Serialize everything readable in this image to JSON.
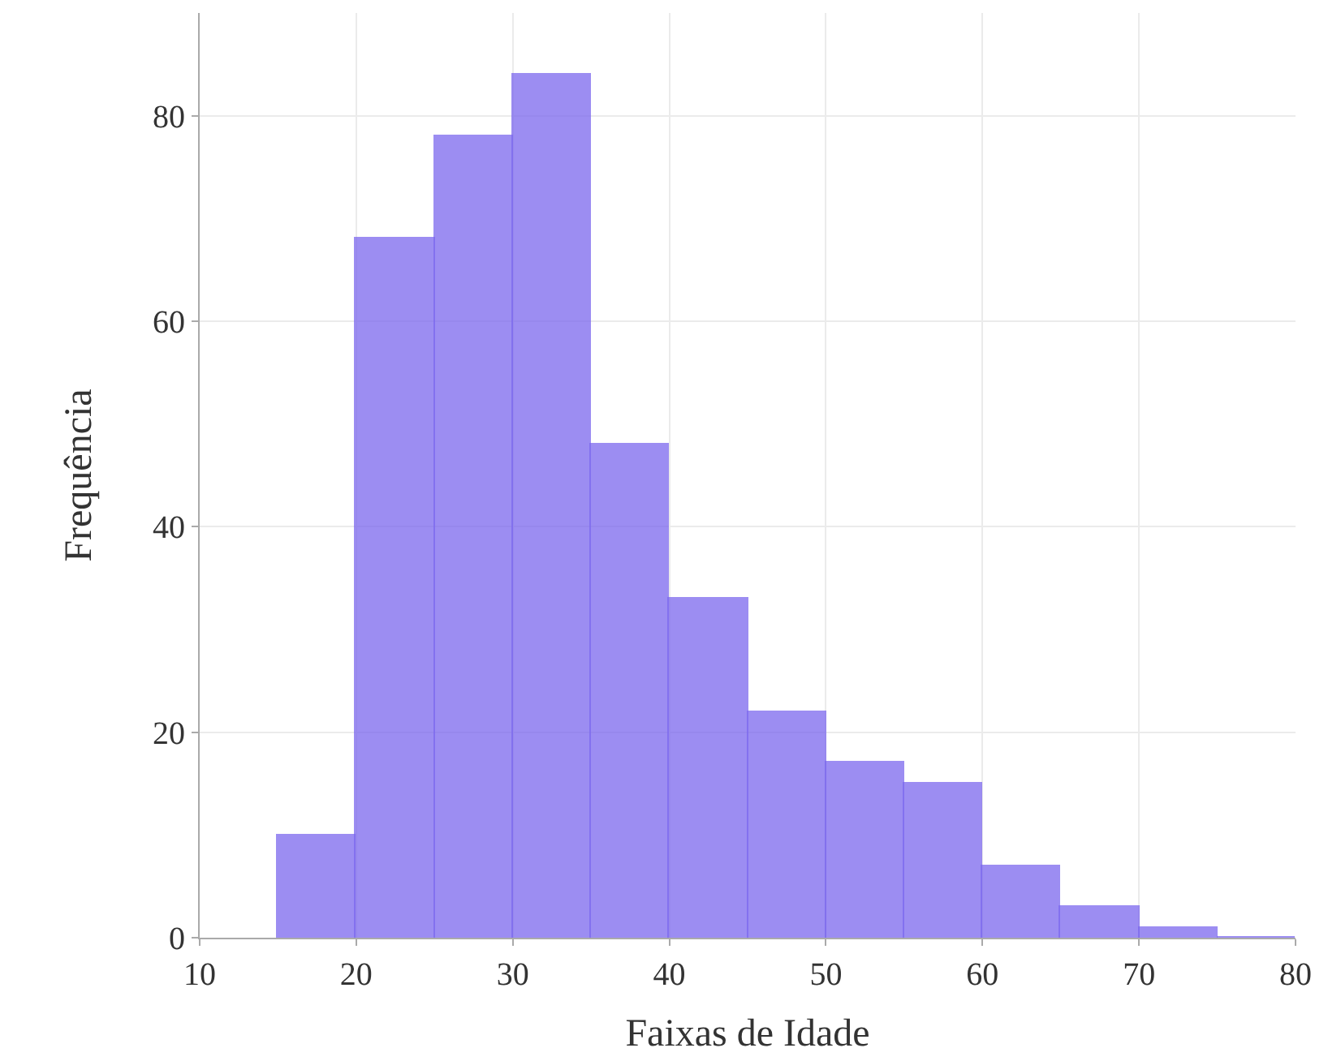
{
  "chart_data": {
    "type": "histogram",
    "xlabel": "Faixas de Idade",
    "ylabel": "Frequência",
    "bins": [
      15,
      20,
      25,
      30,
      35,
      40,
      45,
      50,
      55,
      60,
      65,
      70,
      75,
      80
    ],
    "values": [
      10,
      68,
      78,
      84,
      48,
      33,
      22,
      17,
      15,
      7,
      3,
      1,
      0
    ],
    "color": "#7b68ee",
    "xlim": [
      10,
      80
    ],
    "xticks": [
      10,
      20,
      30,
      40,
      50,
      60,
      70,
      80
    ],
    "ylim": [
      0,
      90
    ],
    "yticks": [
      0,
      20,
      40,
      60,
      80
    ],
    "grid": true
  }
}
